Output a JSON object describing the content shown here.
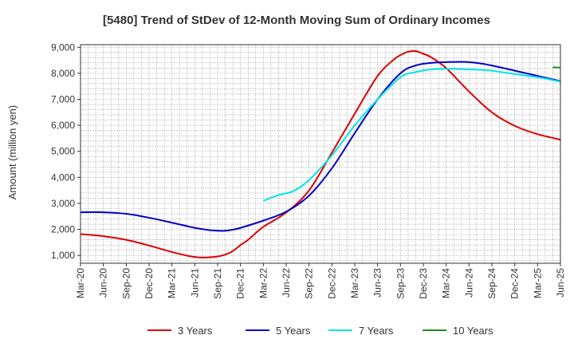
{
  "chart_data": {
    "type": "line",
    "title": "[5480]  Trend of StDev of 12-Month Moving Sum of Ordinary Incomes",
    "xlabel": "",
    "ylabel": "Amount (million yen)",
    "ylim": [
      700,
      9100
    ],
    "yticks": [
      1000,
      2000,
      3000,
      4000,
      5000,
      6000,
      7000,
      8000,
      9000
    ],
    "ytick_labels": [
      "1,000",
      "2,000",
      "3,000",
      "4,000",
      "5,000",
      "6,000",
      "7,000",
      "8,000",
      "9,000"
    ],
    "xlim": [
      0,
      63
    ],
    "xtick_labels": [
      "Mar-20",
      "Jun-20",
      "Sep-20",
      "Dec-20",
      "Mar-21",
      "Jun-21",
      "Sep-21",
      "Dec-21",
      "Mar-22",
      "Jun-22",
      "Sep-22",
      "Dec-22",
      "Mar-23",
      "Jun-23",
      "Sep-23",
      "Dec-23",
      "Mar-24",
      "Jun-24",
      "Sep-24",
      "Dec-24",
      "Mar-25",
      "Jun-25"
    ],
    "x_unit": "months since Mar-20",
    "grid": true,
    "legend_position": "bottom",
    "series": [
      {
        "name": "3 Years",
        "color": "#dd0000",
        "x": [
          0,
          3,
          6,
          9,
          12,
          14,
          15,
          16,
          17,
          18,
          19,
          20,
          21,
          22,
          24,
          27,
          30,
          33,
          36,
          39,
          41,
          42,
          43,
          44,
          45,
          46,
          48,
          51,
          54,
          57,
          60,
          63
        ],
        "y": [
          1820,
          1740,
          1600,
          1380,
          1130,
          990,
          940,
          920,
          930,
          960,
          1030,
          1170,
          1400,
          1600,
          2100,
          2650,
          3500,
          4950,
          6450,
          7900,
          8500,
          8700,
          8830,
          8850,
          8750,
          8620,
          8200,
          7300,
          6500,
          5980,
          5660,
          5450
        ]
      },
      {
        "name": "5 Years",
        "color": "#0000cc",
        "x": [
          0,
          3,
          6,
          9,
          12,
          15,
          17,
          18,
          19,
          20,
          21,
          24,
          27,
          30,
          33,
          36,
          39,
          42,
          44,
          46,
          48,
          50,
          52,
          54,
          57,
          60,
          63
        ],
        "y": [
          2660,
          2660,
          2600,
          2450,
          2260,
          2060,
          1970,
          1950,
          1950,
          1990,
          2060,
          2340,
          2680,
          3300,
          4350,
          5700,
          7000,
          8000,
          8300,
          8400,
          8430,
          8440,
          8400,
          8300,
          8100,
          7900,
          7700
        ]
      },
      {
        "name": "7 Years",
        "color": "#00e5e5",
        "x": [
          24,
          26,
          28,
          30,
          33,
          36,
          39,
          42,
          44,
          46,
          48,
          50,
          52,
          54,
          57,
          60,
          63
        ],
        "y": [
          3100,
          3320,
          3480,
          3900,
          4850,
          6000,
          7000,
          7850,
          8050,
          8150,
          8170,
          8160,
          8140,
          8100,
          7970,
          7850,
          7680
        ]
      },
      {
        "name": "10 Years",
        "color": "#228b22",
        "x": [
          62,
          63
        ],
        "y": [
          8230,
          8220
        ]
      }
    ]
  }
}
